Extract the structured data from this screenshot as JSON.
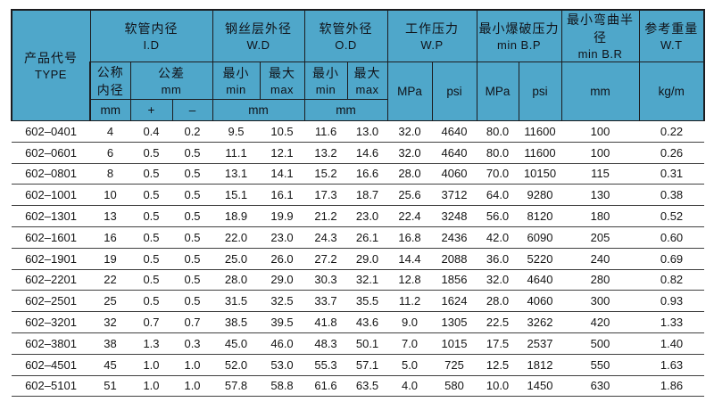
{
  "table": {
    "accent_color": "#4fa7ca",
    "border_color": "#1c1c1f",
    "row_line_color": "#404040",
    "header": {
      "type_zh": "产品代号",
      "type_en": "TYPE",
      "id_zh": "软管内径",
      "id_en": "I.D",
      "wd_zh": "钢丝层外径",
      "wd_en": "W.D",
      "od_zh": "软管外径",
      "od_en": "O.D",
      "wp_zh": "工作压力",
      "wp_en": "W.P",
      "bp_zh": "最小爆破压力",
      "bp_en": "min B.P",
      "br_zh": "最小弯曲半径",
      "br_en": "min B.R",
      "wt_zh": "参考重量",
      "wt_en": "W.T",
      "nominal_line1": "公称",
      "nominal_line2": "内径",
      "tolerance_zh": "公差",
      "tolerance_unit": "mm",
      "min_zh": "最小",
      "min_en": "min",
      "max_zh": "最大",
      "max_en": "max",
      "unit_mm": "mm",
      "unit_plus": "+",
      "unit_minus": "–",
      "unit_mpa": "MPa",
      "unit_psi": "psi",
      "unit_kgm": "kg/m"
    },
    "column_keys": [
      "type",
      "nominal-mm",
      "tol-plus",
      "tol-minus",
      "wd-min",
      "wd-max",
      "od-min",
      "od-max",
      "wp-mpa",
      "wp-psi",
      "bp-mpa",
      "bp-psi",
      "br-mm",
      "wt-kgm"
    ],
    "rows": [
      [
        "602–0401",
        "4",
        "0.4",
        "0.2",
        "9.5",
        "10.5",
        "11.6",
        "13.0",
        "32.0",
        "4640",
        "80.0",
        "11600",
        "100",
        "0.22"
      ],
      [
        "602–0601",
        "6",
        "0.5",
        "0.5",
        "11.1",
        "12.1",
        "13.2",
        "14.6",
        "32.0",
        "4640",
        "80.0",
        "11600",
        "100",
        "0.26"
      ],
      [
        "602–0801",
        "8",
        "0.5",
        "0.5",
        "13.1",
        "14.1",
        "15.2",
        "16.6",
        "28.0",
        "4060",
        "70.0",
        "10150",
        "115",
        "0.31"
      ],
      [
        "602–1001",
        "10",
        "0.5",
        "0.5",
        "15.1",
        "16.1",
        "17.3",
        "18.7",
        "25.6",
        "3712",
        "64.0",
        "9280",
        "130",
        "0.38"
      ],
      [
        "602–1301",
        "13",
        "0.5",
        "0.5",
        "18.9",
        "19.9",
        "21.2",
        "23.0",
        "22.4",
        "3248",
        "56.0",
        "8120",
        "180",
        "0.52"
      ],
      [
        "602–1601",
        "16",
        "0.5",
        "0.5",
        "22.0",
        "23.0",
        "24.3",
        "26.1",
        "16.8",
        "2436",
        "42.0",
        "6090",
        "205",
        "0.60"
      ],
      [
        "602–1901",
        "19",
        "0.5",
        "0.5",
        "25.0",
        "26.0",
        "27.2",
        "29.0",
        "14.4",
        "2088",
        "36.0",
        "5220",
        "240",
        "0.69"
      ],
      [
        "602–2201",
        "22",
        "0.5",
        "0.5",
        "28.0",
        "29.0",
        "30.3",
        "32.1",
        "12.8",
        "1856",
        "32.0",
        "4640",
        "280",
        "0.82"
      ],
      [
        "602–2501",
        "25",
        "0.5",
        "0.5",
        "31.5",
        "32.5",
        "33.7",
        "35.5",
        "11.2",
        "1624",
        "28.0",
        "4060",
        "300",
        "0.93"
      ],
      [
        "602–3201",
        "32",
        "0.7",
        "0.7",
        "38.5",
        "39.5",
        "41.8",
        "43.6",
        "9.0",
        "1305",
        "22.5",
        "3262",
        "420",
        "1.33"
      ],
      [
        "602–3801",
        "38",
        "1.3",
        "0.3",
        "45.0",
        "46.0",
        "48.3",
        "50.1",
        "7.0",
        "1015",
        "17.5",
        "2537",
        "500",
        "1.40"
      ],
      [
        "602–4501",
        "45",
        "1.0",
        "1.0",
        "52.0",
        "53.0",
        "55.3",
        "57.1",
        "5.0",
        "725",
        "12.5",
        "1812",
        "550",
        "1.63"
      ],
      [
        "602–5101",
        "51",
        "1.0",
        "1.0",
        "57.8",
        "58.8",
        "61.6",
        "63.5",
        "4.0",
        "580",
        "10.0",
        "1450",
        "630",
        "1.86"
      ]
    ]
  }
}
